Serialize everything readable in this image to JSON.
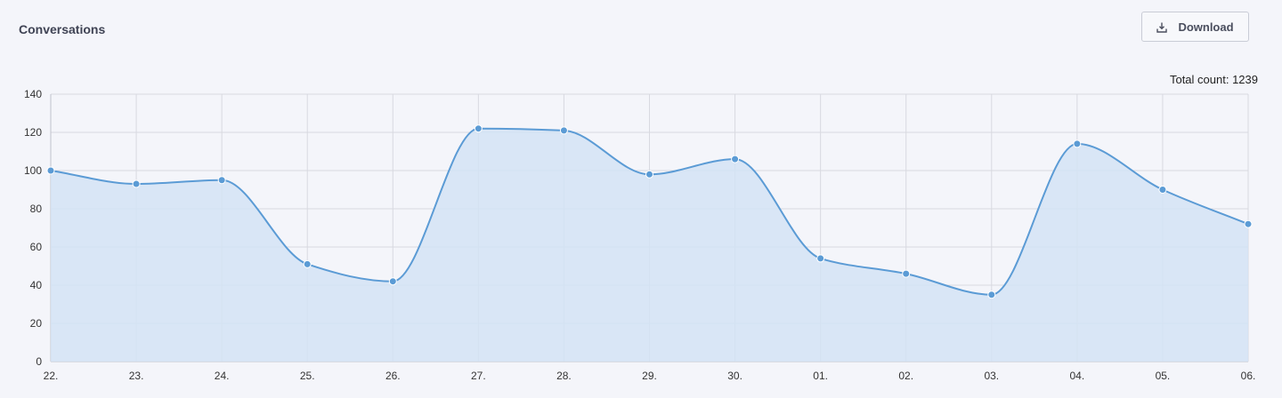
{
  "header": {
    "title": "Conversations",
    "download_label": "Download",
    "download_icon": "download-icon"
  },
  "summary": {
    "total_count_text": "Total count: 1239"
  },
  "colors": {
    "line": "#5b9bd5",
    "fill": "#d4e3f5",
    "grid": "#d8d9e0",
    "axis": "#c0c2cc"
  },
  "chart_data": {
    "type": "area",
    "title": "Conversations",
    "xlabel": "",
    "ylabel": "",
    "categories": [
      "22.",
      "23.",
      "24.",
      "25.",
      "26.",
      "27.",
      "28.",
      "29.",
      "30.",
      "01.",
      "02.",
      "03.",
      "04.",
      "05.",
      "06."
    ],
    "values": [
      100,
      93,
      95,
      51,
      42,
      122,
      121,
      98,
      106,
      54,
      46,
      35,
      114,
      90,
      72
    ],
    "ylim": [
      0,
      140
    ],
    "yticks": [
      0,
      20,
      40,
      60,
      80,
      100,
      120,
      140
    ],
    "grid": true,
    "curve": "smooth",
    "markers": true
  }
}
